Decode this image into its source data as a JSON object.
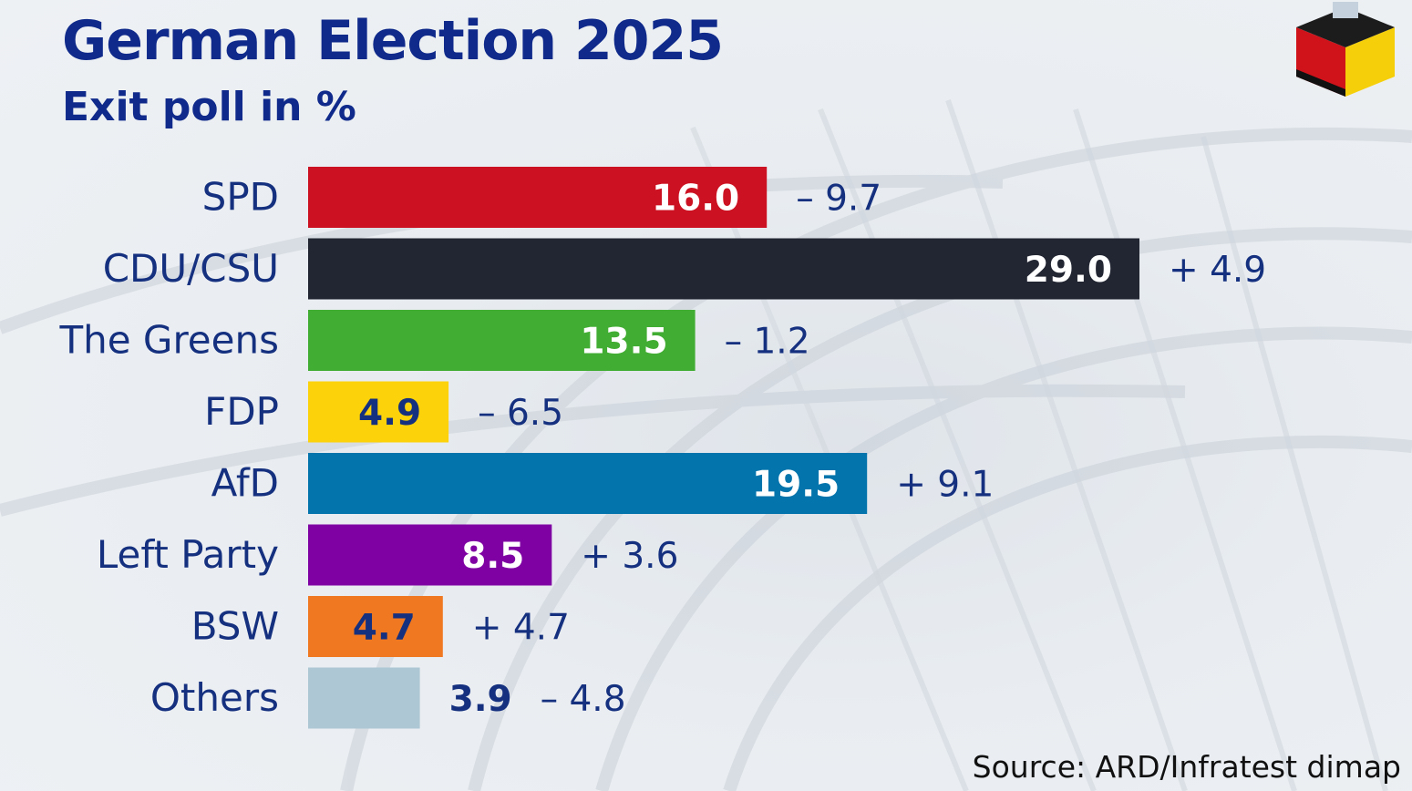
{
  "title": "German Election 2025",
  "subtitle": "Exit poll in %",
  "source": "Source: ARD/Infratest dimap",
  "chart_data": {
    "type": "bar",
    "orientation": "horizontal",
    "categories": [
      "SPD",
      "CDU/CSU",
      "The Greens",
      "FDP",
      "AfD",
      "Left Party",
      "BSW",
      "Others"
    ],
    "values": [
      16.0,
      29.0,
      13.5,
      4.9,
      19.5,
      8.5,
      4.7,
      3.9
    ],
    "value_labels": [
      "16.0",
      "29.0",
      "13.5",
      "4.9",
      "19.5",
      "8.5",
      "4.7",
      "3.9"
    ],
    "change_labels": [
      "– 9.7",
      "+ 4.9",
      "– 1.2",
      "– 6.5",
      "+ 9.1",
      "+ 3.6",
      "+ 4.7",
      "– 4.8"
    ],
    "colors": [
      "#cc1222",
      "#222632",
      "#42ad33",
      "#fcd20a",
      "#0475ac",
      "#7f00a3",
      "#f07820",
      "#adc8d4"
    ],
    "value_label_colors": [
      "#ffffff",
      "#ffffff",
      "#ffffff",
      "#14307f",
      "#ffffff",
      "#ffffff",
      "#14307f",
      "#14307f"
    ],
    "value_label_outside": [
      false,
      false,
      false,
      false,
      false,
      false,
      false,
      true
    ],
    "grid": false,
    "legend": "none"
  }
}
